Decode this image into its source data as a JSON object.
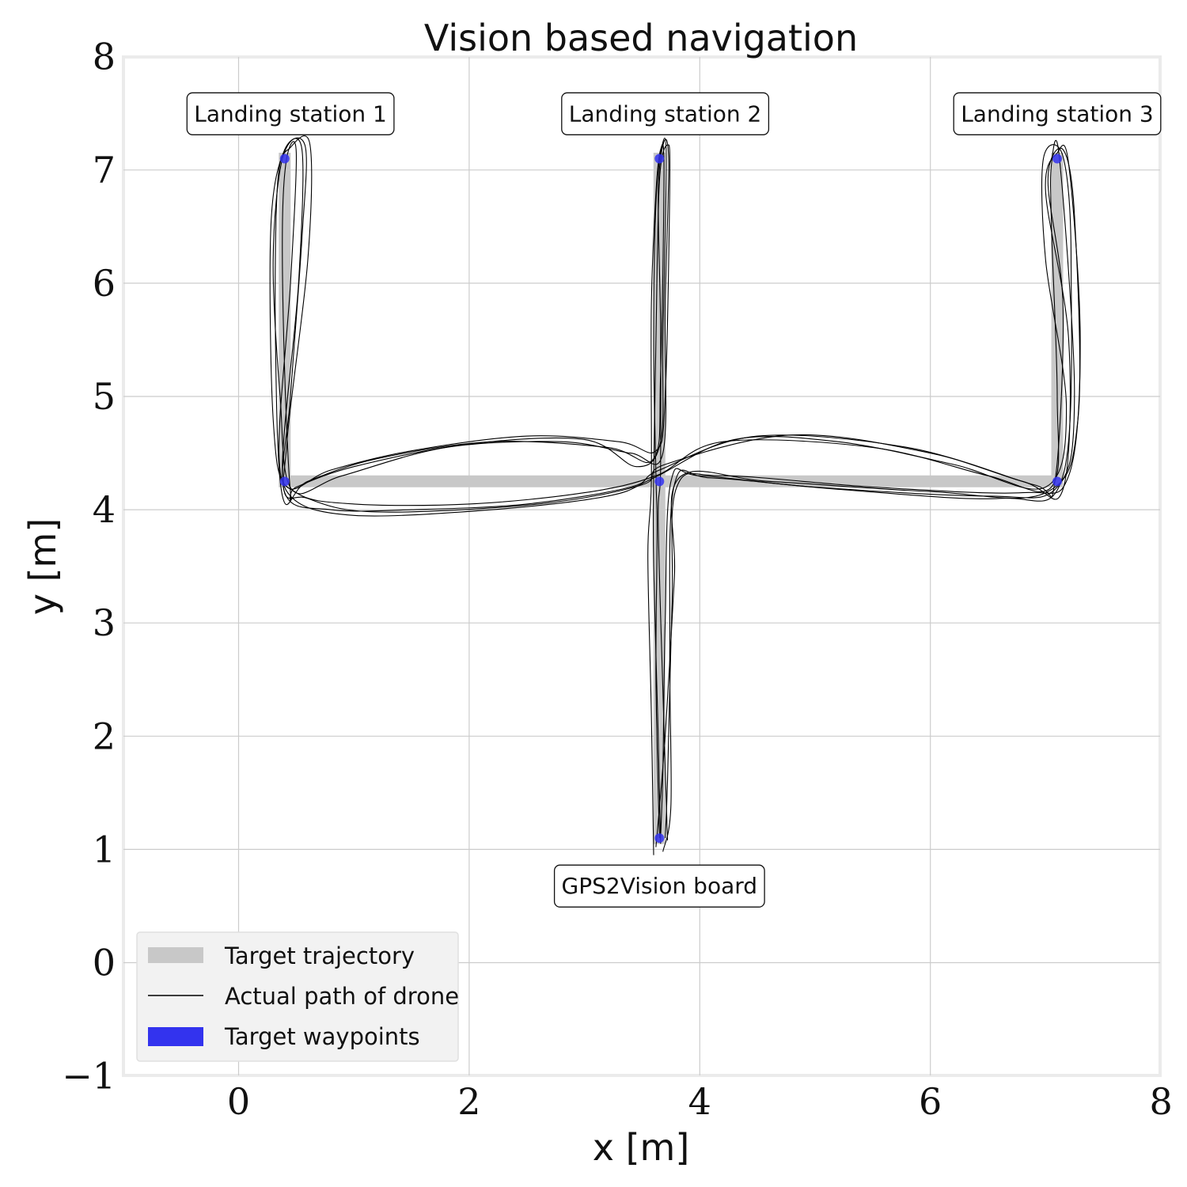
{
  "chart_data": {
    "type": "line",
    "title": "Vision based navigation",
    "xlabel": "x [m]",
    "ylabel": "y [m]",
    "xlim": [
      -0.5,
      8
    ],
    "ylim": [
      -1,
      8
    ],
    "xticks": [
      0,
      2,
      4,
      6,
      8
    ],
    "yticks": [
      -1,
      0,
      1,
      2,
      3,
      4,
      5,
      6,
      7,
      8
    ],
    "xtick_labels": [
      "0",
      "2",
      "4",
      "6",
      "8"
    ],
    "ytick_labels": [
      "−1",
      "0",
      "1",
      "2",
      "3",
      "4",
      "5",
      "6",
      "7",
      "8"
    ],
    "grid": true,
    "legend_position": "lower-left",
    "colors": {
      "target_trajectory": "#c8c8c8",
      "actual_path": "#000000",
      "waypoints": "#3333ee",
      "grid": "#cccccc",
      "frame": "#ebebeb"
    },
    "annotations": [
      {
        "text": "Landing station 1",
        "x": 0.45,
        "y": 7.5
      },
      {
        "text": "Landing station 2",
        "x": 3.7,
        "y": 7.5
      },
      {
        "text": "Landing station 3",
        "x": 7.1,
        "y": 7.5
      },
      {
        "text": "GPS2Vision board",
        "x": 3.65,
        "y": 0.68
      }
    ],
    "target_waypoints": [
      {
        "x": 0.4,
        "y": 7.1
      },
      {
        "x": 0.4,
        "y": 4.25
      },
      {
        "x": 3.65,
        "y": 7.1
      },
      {
        "x": 3.65,
        "y": 4.25
      },
      {
        "x": 3.65,
        "y": 1.1
      },
      {
        "x": 7.1,
        "y": 7.1
      },
      {
        "x": 7.1,
        "y": 4.25
      }
    ],
    "target_trajectory": [
      {
        "name": "Target trajectory",
        "points": [
          [
            0.4,
            7.1
          ],
          [
            0.4,
            4.25
          ],
          [
            3.65,
            4.25
          ],
          [
            3.65,
            7.1
          ]
        ]
      },
      {
        "name": "",
        "points": [
          [
            3.65,
            4.25
          ],
          [
            7.1,
            4.25
          ],
          [
            7.1,
            7.1
          ]
        ]
      },
      {
        "name": "",
        "points": [
          [
            3.65,
            4.25
          ],
          [
            3.65,
            1.1
          ]
        ]
      }
    ],
    "actual_paths": [
      {
        "name": "Actual path of drone",
        "points": [
          [
            3.65,
            1.1
          ],
          [
            3.62,
            2.5
          ],
          [
            3.63,
            3.8
          ],
          [
            3.62,
            4.3
          ],
          [
            3.6,
            5.5
          ],
          [
            3.62,
            6.7
          ],
          [
            3.67,
            7.2
          ],
          [
            3.71,
            7.1
          ],
          [
            3.68,
            5.5
          ],
          [
            3.66,
            4.6
          ],
          [
            3.45,
            4.38
          ],
          [
            3.0,
            4.62
          ],
          [
            2.0,
            4.58
          ],
          [
            1.0,
            4.38
          ],
          [
            0.5,
            4.2
          ],
          [
            0.45,
            4.15
          ],
          [
            0.4,
            5.2
          ],
          [
            0.38,
            6.5
          ],
          [
            0.42,
            7.12
          ],
          [
            0.5,
            7.15
          ],
          [
            0.45,
            6.0
          ],
          [
            0.35,
            4.5
          ],
          [
            0.5,
            4.15
          ],
          [
            1.0,
            4.05
          ],
          [
            2.0,
            4.05
          ],
          [
            3.0,
            4.15
          ],
          [
            3.62,
            4.3
          ],
          [
            4.2,
            4.6
          ],
          [
            5.5,
            4.55
          ],
          [
            6.5,
            4.3
          ],
          [
            7.05,
            4.2
          ],
          [
            7.1,
            5.0
          ],
          [
            7.05,
            6.5
          ],
          [
            7.05,
            7.05
          ],
          [
            7.12,
            7.1
          ],
          [
            7.25,
            5.0
          ],
          [
            7.1,
            4.2
          ],
          [
            6.5,
            4.12
          ],
          [
            5.0,
            4.2
          ],
          [
            4.0,
            4.3
          ],
          [
            3.75,
            4.25
          ],
          [
            3.7,
            3.0
          ],
          [
            3.68,
            1.7
          ],
          [
            3.66,
            1.1
          ]
        ]
      },
      {
        "name": "",
        "points": [
          [
            3.66,
            1.05
          ],
          [
            3.64,
            2.0
          ],
          [
            3.6,
            3.5
          ],
          [
            3.6,
            4.3
          ],
          [
            3.62,
            5.5
          ],
          [
            3.65,
            6.9
          ],
          [
            3.72,
            7.22
          ],
          [
            3.74,
            6.9
          ],
          [
            3.7,
            5.0
          ],
          [
            3.62,
            4.52
          ],
          [
            3.3,
            4.6
          ],
          [
            2.5,
            4.65
          ],
          [
            1.5,
            4.52
          ],
          [
            0.8,
            4.35
          ],
          [
            0.42,
            4.2
          ],
          [
            0.3,
            4.8
          ],
          [
            0.28,
            6.5
          ],
          [
            0.4,
            7.18
          ],
          [
            0.58,
            7.2
          ],
          [
            0.55,
            6.4
          ],
          [
            0.45,
            5.0
          ],
          [
            0.4,
            4.15
          ],
          [
            0.8,
            4.0
          ],
          [
            1.5,
            4.0
          ],
          [
            2.5,
            4.05
          ],
          [
            3.4,
            4.2
          ],
          [
            3.65,
            4.35
          ],
          [
            4.5,
            4.65
          ],
          [
            5.8,
            4.55
          ],
          [
            6.8,
            4.25
          ],
          [
            7.15,
            4.18
          ],
          [
            7.2,
            5.5
          ],
          [
            7.0,
            6.8
          ],
          [
            7.1,
            7.15
          ],
          [
            7.2,
            7.05
          ],
          [
            7.3,
            5.5
          ],
          [
            7.2,
            4.3
          ],
          [
            6.8,
            4.15
          ],
          [
            5.5,
            4.2
          ],
          [
            4.2,
            4.3
          ],
          [
            3.8,
            4.2
          ],
          [
            3.76,
            3.2
          ],
          [
            3.72,
            1.6
          ],
          [
            3.7,
            1.1
          ]
        ]
      },
      {
        "name": "",
        "points": [
          [
            3.6,
            0.95
          ],
          [
            3.58,
            2.2
          ],
          [
            3.55,
            3.6
          ],
          [
            3.58,
            4.25
          ],
          [
            3.58,
            5.8
          ],
          [
            3.62,
            6.8
          ],
          [
            3.66,
            7.18
          ],
          [
            3.69,
            7.0
          ],
          [
            3.66,
            5.2
          ],
          [
            3.6,
            4.45
          ],
          [
            3.2,
            4.55
          ],
          [
            2.2,
            4.6
          ],
          [
            1.2,
            4.45
          ],
          [
            0.6,
            4.25
          ],
          [
            0.38,
            4.12
          ],
          [
            0.32,
            5.5
          ],
          [
            0.34,
            6.9
          ],
          [
            0.45,
            7.2
          ],
          [
            0.62,
            7.22
          ],
          [
            0.6,
            6.2
          ],
          [
            0.42,
            4.6
          ],
          [
            0.45,
            4.12
          ],
          [
            1.0,
            3.95
          ],
          [
            2.2,
            4.0
          ],
          [
            3.2,
            4.12
          ],
          [
            3.6,
            4.28
          ],
          [
            4.3,
            4.62
          ],
          [
            5.2,
            4.6
          ],
          [
            6.2,
            4.4
          ],
          [
            7.0,
            4.2
          ],
          [
            7.18,
            4.9
          ],
          [
            7.0,
            6.2
          ],
          [
            6.98,
            7.1
          ],
          [
            7.15,
            7.12
          ],
          [
            7.22,
            6.2
          ],
          [
            7.15,
            4.3
          ],
          [
            6.6,
            4.1
          ],
          [
            5.2,
            4.18
          ],
          [
            4.1,
            4.28
          ],
          [
            3.78,
            4.22
          ],
          [
            3.74,
            2.8
          ],
          [
            3.75,
            1.4
          ],
          [
            3.68,
            0.98
          ]
        ]
      },
      {
        "name": "",
        "points": [
          [
            3.72,
            1.08
          ],
          [
            3.68,
            2.4
          ],
          [
            3.64,
            3.9
          ],
          [
            3.66,
            4.35
          ],
          [
            3.66,
            5.6
          ],
          [
            3.64,
            6.8
          ],
          [
            3.69,
            7.25
          ],
          [
            3.73,
            7.05
          ],
          [
            3.7,
            5.8
          ],
          [
            3.68,
            4.5
          ],
          [
            3.4,
            4.5
          ],
          [
            2.8,
            4.6
          ],
          [
            1.8,
            4.55
          ],
          [
            0.9,
            4.3
          ],
          [
            0.46,
            4.18
          ],
          [
            0.36,
            5.0
          ],
          [
            0.3,
            6.2
          ],
          [
            0.38,
            7.1
          ],
          [
            0.55,
            7.18
          ],
          [
            0.52,
            6.0
          ],
          [
            0.38,
            4.3
          ],
          [
            0.6,
            4.1
          ],
          [
            1.2,
            3.98
          ],
          [
            2.6,
            4.05
          ],
          [
            3.5,
            4.22
          ],
          [
            3.7,
            4.4
          ],
          [
            4.8,
            4.66
          ],
          [
            6.0,
            4.5
          ],
          [
            6.9,
            4.22
          ],
          [
            7.08,
            4.25
          ],
          [
            7.15,
            5.8
          ],
          [
            7.02,
            6.9
          ],
          [
            7.15,
            7.18
          ],
          [
            7.25,
            6.6
          ],
          [
            7.28,
            4.8
          ],
          [
            7.0,
            4.15
          ],
          [
            6.0,
            4.16
          ],
          [
            4.6,
            4.25
          ],
          [
            3.82,
            4.28
          ],
          [
            3.78,
            3.4
          ],
          [
            3.7,
            2.0
          ],
          [
            3.62,
            1.02
          ]
        ]
      }
    ],
    "legend": [
      {
        "label": "Target trajectory",
        "kind": "band"
      },
      {
        "label": "Actual path of drone",
        "kind": "line"
      },
      {
        "label": "Target waypoints",
        "kind": "patch"
      }
    ]
  }
}
